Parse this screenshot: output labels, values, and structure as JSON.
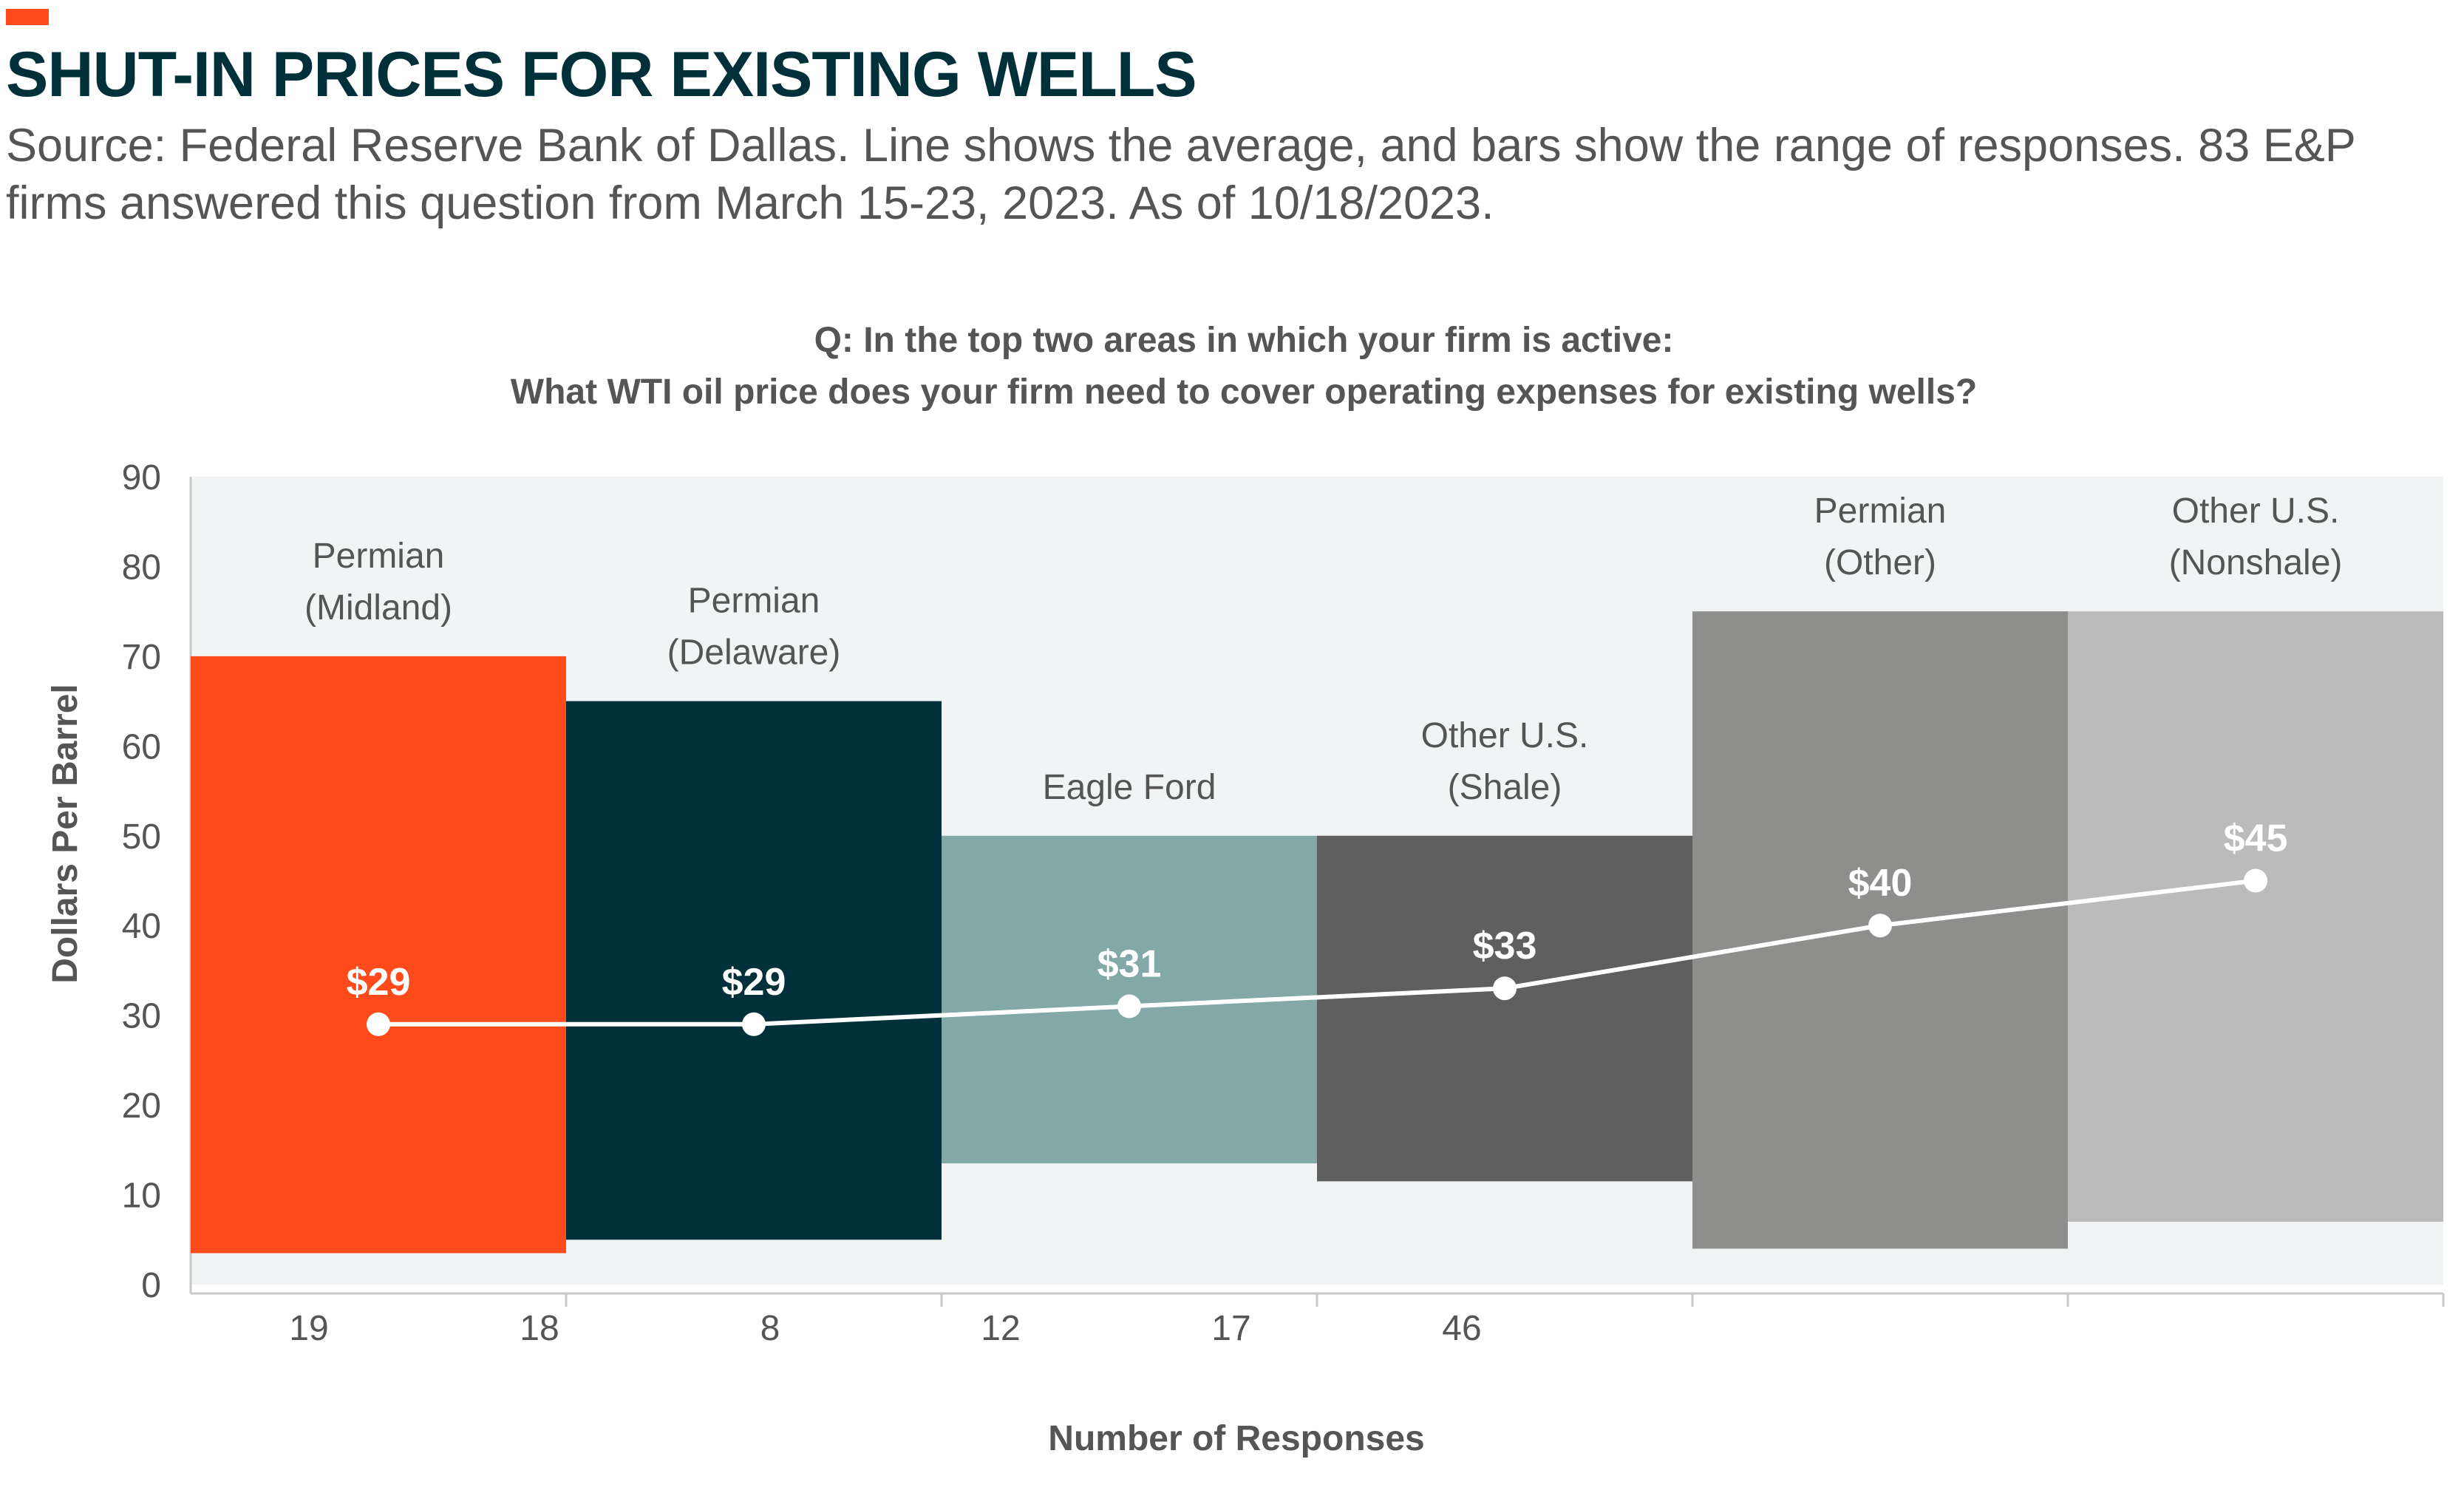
{
  "header": {
    "title": "SHUT-IN PRICES FOR EXISTING WELLS",
    "subtitle": "Source: Federal Reserve Bank of Dallas. Line shows the average, and bars show the range of responses. 83 E&P firms answered this question from March 15-23, 2023. As of 10/18/2023."
  },
  "colors": {
    "accent": "#FF4A1C",
    "plot_background": "#F0F4F5",
    "line": "#ffffff"
  },
  "chart_data": {
    "type": "bar",
    "subtype": "floating range bars with average line",
    "question": [
      "Q: In the top two areas in which your firm is active:",
      "What WTI oil price does your firm need to cover operating expenses for existing wells?"
    ],
    "categories": [
      [
        "Permian",
        "(Midland)"
      ],
      [
        "Permian",
        "(Delaware)"
      ],
      [
        "Eagle Ford"
      ],
      [
        "Other U.S.",
        "(Shale)"
      ],
      [
        "Permian",
        "(Other)"
      ],
      [
        "Other U.S.",
        "(Nonshale)"
      ]
    ],
    "ranges": [
      {
        "low": 3.5,
        "high": 70,
        "color": "#FF4A1C"
      },
      {
        "low": 5,
        "high": 65,
        "color": "#00303A"
      },
      {
        "low": 13.5,
        "high": 50,
        "color": "#82A8A8"
      },
      {
        "low": 11.5,
        "high": 50,
        "color": "#5F5F5F"
      },
      {
        "low": 4,
        "high": 75,
        "color": "#8E8E8D"
      },
      {
        "low": 7,
        "high": 75,
        "color": "#BBBBBB"
      }
    ],
    "averages": [
      29,
      29,
      31,
      33,
      40,
      45
    ],
    "average_labels": [
      "$29",
      "$29",
      "$31",
      "$33",
      "$40",
      "$45"
    ],
    "ylabel": "Dollars Per Barrel",
    "xlabel": "Number of Responses",
    "ylim": [
      0,
      90
    ],
    "yticks": [
      0,
      10,
      20,
      30,
      40,
      50,
      60,
      70,
      80,
      90
    ],
    "x_response_labels": [
      "19",
      "18",
      "8",
      "12",
      "17",
      "46"
    ],
    "grid": false
  }
}
